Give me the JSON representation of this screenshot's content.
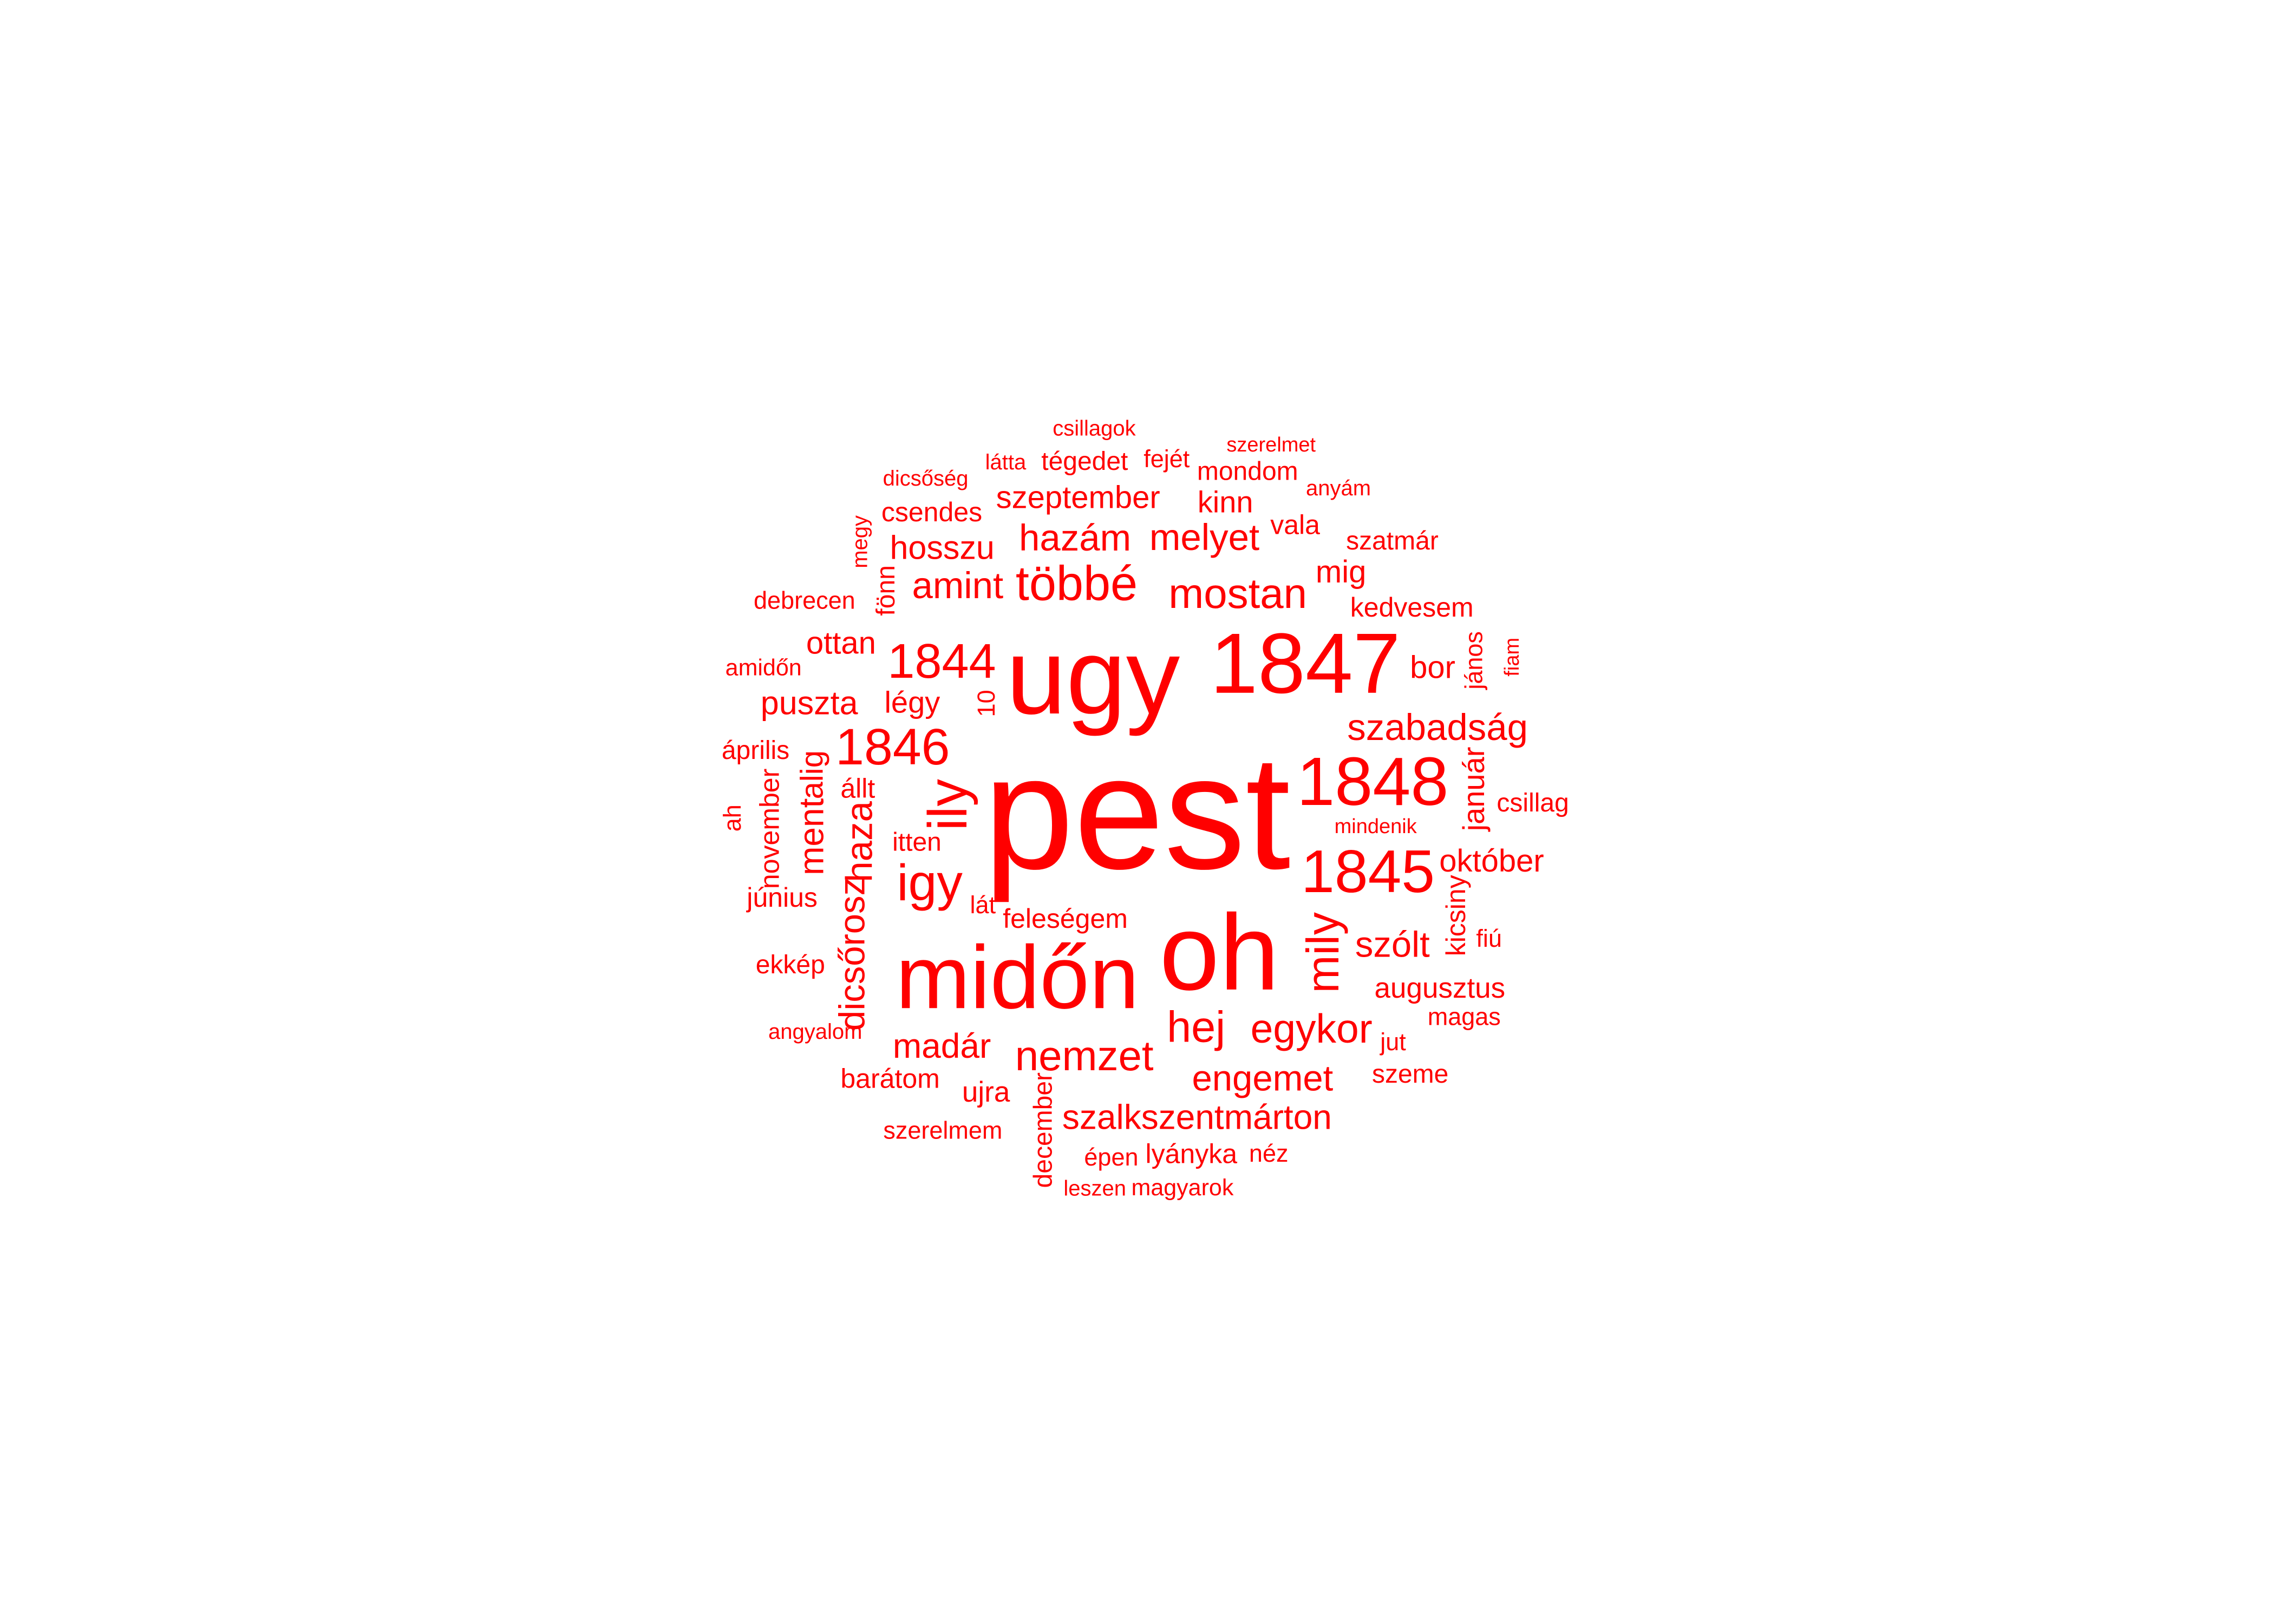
{
  "chart_data": {
    "type": "wordcloud",
    "color": "#ff0000",
    "background": "#ffffff",
    "words": [
      {
        "text": "pest",
        "weight": 100
      },
      {
        "text": "ugy",
        "weight": 72
      },
      {
        "text": "oh",
        "weight": 72
      },
      {
        "text": "midőn",
        "weight": 62
      },
      {
        "text": "1847",
        "weight": 60
      },
      {
        "text": "1848",
        "weight": 50
      },
      {
        "text": "1845",
        "weight": 45
      },
      {
        "text": "ily",
        "weight": 42
      },
      {
        "text": "igy",
        "weight": 40
      },
      {
        "text": "1846",
        "weight": 40
      },
      {
        "text": "többé",
        "weight": 38
      },
      {
        "text": "1844",
        "weight": 38
      },
      {
        "text": "mily",
        "weight": 36
      },
      {
        "text": "hej",
        "weight": 35
      },
      {
        "text": "mostan",
        "weight": 34
      },
      {
        "text": "nemzet",
        "weight": 34
      },
      {
        "text": "egykor",
        "weight": 33
      },
      {
        "text": "haza",
        "weight": 31
      },
      {
        "text": "hazám",
        "weight": 31
      },
      {
        "text": "amint",
        "weight": 31
      },
      {
        "text": "szabadság",
        "weight": 31
      },
      {
        "text": "melyet",
        "weight": 31
      },
      {
        "text": "dicsőrosz",
        "weight": 30
      },
      {
        "text": "engemet",
        "weight": 30
      },
      {
        "text": "szólt",
        "weight": 30
      },
      {
        "text": "szalkszentmárton",
        "weight": 29
      },
      {
        "text": "madár",
        "weight": 29
      },
      {
        "text": "ment",
        "weight": 29
      },
      {
        "text": "puszta",
        "weight": 28
      },
      {
        "text": "hosszu",
        "weight": 28
      },
      {
        "text": "szeptember",
        "weight": 27
      },
      {
        "text": "október",
        "weight": 27
      },
      {
        "text": "alig",
        "weight": 27
      },
      {
        "text": "ottan",
        "weight": 27
      },
      {
        "text": "mig",
        "weight": 27
      },
      {
        "text": "bor",
        "weight": 27
      },
      {
        "text": "légy",
        "weight": 26
      },
      {
        "text": "január",
        "weight": 26
      },
      {
        "text": "kinn",
        "weight": 26
      },
      {
        "text": "augusztus",
        "weight": 25
      },
      {
        "text": "ujra",
        "weight": 25
      },
      {
        "text": "feleségem",
        "weight": 24
      },
      {
        "text": "kicsiny",
        "weight": 24
      },
      {
        "text": "kedvesem",
        "weight": 24
      },
      {
        "text": "lyányka",
        "weight": 24
      },
      {
        "text": "június",
        "weight": 24
      },
      {
        "text": "barátom",
        "weight": 24
      },
      {
        "text": "november",
        "weight": 24
      },
      {
        "text": "csendes",
        "weight": 24
      },
      {
        "text": "vala",
        "weight": 24
      },
      {
        "text": "állt",
        "weight": 24
      },
      {
        "text": "tégedet",
        "weight": 23
      },
      {
        "text": "december",
        "weight": 23
      },
      {
        "text": "ekkép",
        "weight": 23
      },
      {
        "text": "mondom",
        "weight": 23
      },
      {
        "text": "itten",
        "weight": 23
      },
      {
        "text": "szatmár",
        "weight": 23
      },
      {
        "text": "fönn",
        "weight": 23
      },
      {
        "text": "szeme",
        "weight": 23
      },
      {
        "text": "április",
        "weight": 23
      },
      {
        "text": "csillag",
        "weight": 23
      },
      {
        "text": "lát",
        "weight": 22
      },
      {
        "text": "jános",
        "weight": 22
      },
      {
        "text": "magas",
        "weight": 22
      },
      {
        "text": "szerelmem",
        "weight": 22
      },
      {
        "text": "debrecen",
        "weight": 22
      },
      {
        "text": "épen",
        "weight": 22
      },
      {
        "text": "10",
        "weight": 22
      },
      {
        "text": "jut",
        "weight": 22
      },
      {
        "text": "fiú",
        "weight": 22
      },
      {
        "text": "fejét",
        "weight": 22
      },
      {
        "text": "néz",
        "weight": 22
      },
      {
        "text": "ah",
        "weight": 22
      },
      {
        "text": "magyarok",
        "weight": 21
      },
      {
        "text": "amidőn",
        "weight": 21
      },
      {
        "text": "angyalom",
        "weight": 20
      },
      {
        "text": "anyám",
        "weight": 20
      },
      {
        "text": "megy",
        "weight": 20
      },
      {
        "text": "látta",
        "weight": 20
      },
      {
        "text": "dicsőség",
        "weight": 20
      },
      {
        "text": "csillagok",
        "weight": 20
      },
      {
        "text": "leszen",
        "weight": 20
      },
      {
        "text": "fiam",
        "weight": 19
      },
      {
        "text": "mindenik",
        "weight": 19
      },
      {
        "text": "szerelmet",
        "weight": 12
      }
    ]
  }
}
